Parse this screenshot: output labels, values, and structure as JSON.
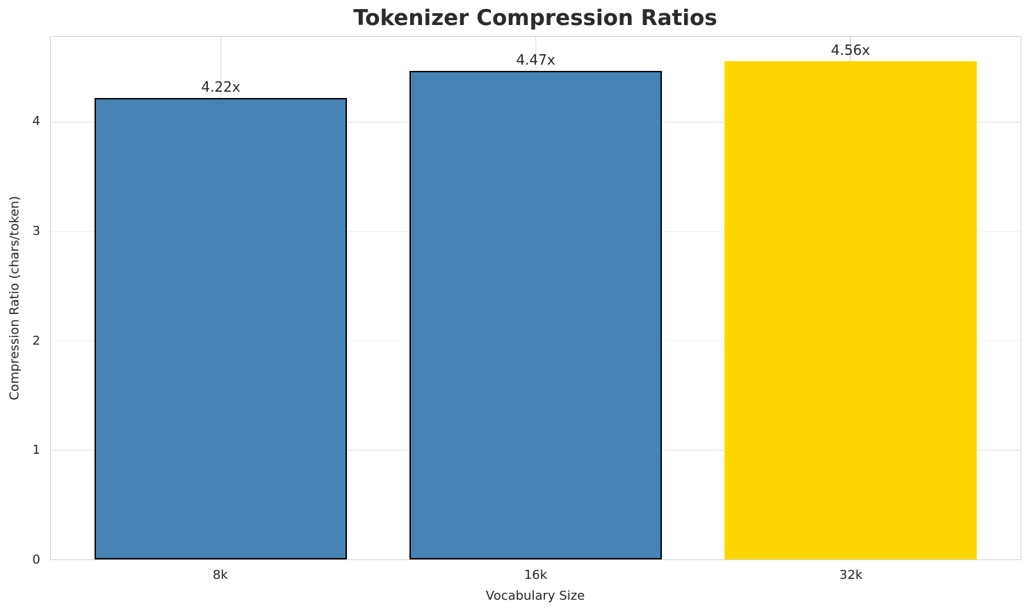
{
  "chart": {
    "title": "Tokenizer Compression Ratios",
    "xlabel": "Vocabulary Size",
    "ylabel": "Compression Ratio (chars/token)"
  },
  "chart_data": {
    "type": "bar",
    "categories": [
      "8k",
      "16k",
      "32k"
    ],
    "values": [
      4.22,
      4.47,
      4.56
    ],
    "bar_labels": [
      "4.22x",
      "4.47x",
      "4.56x"
    ],
    "title": "Tokenizer Compression Ratios",
    "xlabel": "Vocabulary Size",
    "ylabel": "Compression Ratio (chars/token)",
    "ylim": [
      0,
      4.78
    ],
    "yticks": [
      0,
      1,
      2,
      3,
      4
    ],
    "grid": true,
    "legend_position": "none",
    "bar_colors": [
      "#4682B4",
      "#4682B4",
      "#FFD700"
    ],
    "bar_edge_colors": [
      "#000000",
      "#000000",
      "none"
    ]
  },
  "colors": {
    "bar_default": "#4682B4",
    "bar_highlight": "#FFD700",
    "bar_edge": "#000000",
    "grid_horizontal": "#ededed",
    "grid_vertical": "#dcdcdc",
    "spine": "#d2d2d2",
    "title_text": "#2b2b2b",
    "tick_text": "#262626",
    "background": "#ffffff"
  }
}
